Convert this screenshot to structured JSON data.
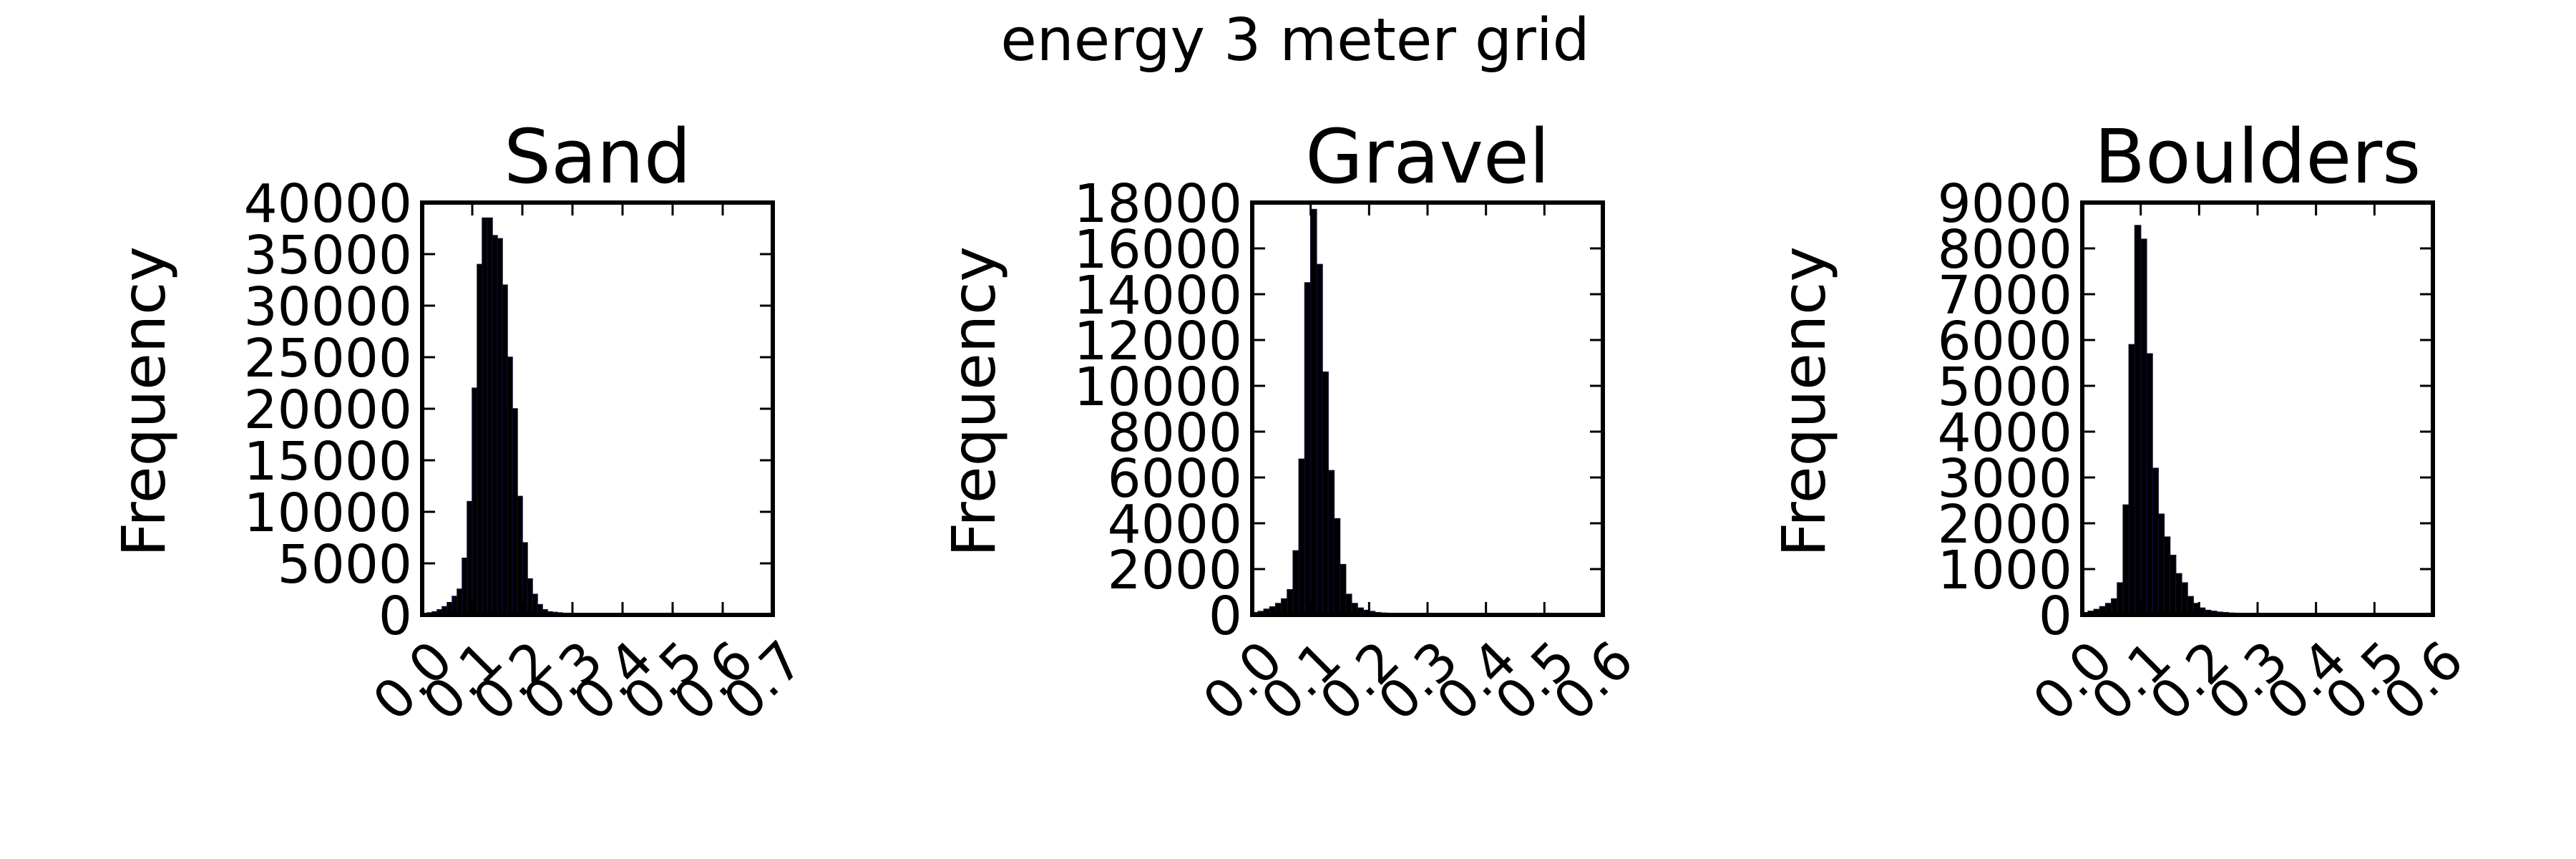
{
  "figure": {
    "suptitle": "energy 3 meter grid"
  },
  "chart_data": [
    {
      "type": "bar",
      "title": "Sand",
      "xlabel": "",
      "ylabel": "Frequency",
      "xlim": [
        0,
        0.7
      ],
      "ylim": [
        0,
        40000
      ],
      "yticks": [
        0,
        5000,
        10000,
        15000,
        20000,
        25000,
        30000,
        35000,
        40000
      ],
      "xticks": [
        "0.0",
        "0.1",
        "0.2",
        "0.3",
        "0.4",
        "0.5",
        "0.6",
        "0.7"
      ],
      "bin_width": 0.01,
      "bins_start": [
        0.0,
        0.01,
        0.02,
        0.03,
        0.04,
        0.05,
        0.06,
        0.07,
        0.08,
        0.09,
        0.1,
        0.11,
        0.12,
        0.13,
        0.14,
        0.15,
        0.16,
        0.17,
        0.18,
        0.19,
        0.2,
        0.21,
        0.22,
        0.23,
        0.24,
        0.25,
        0.26,
        0.27,
        0.28,
        0.29,
        0.3,
        0.31,
        0.32,
        0.33,
        0.34,
        0.35,
        0.36,
        0.37,
        0.38,
        0.39,
        0.4,
        0.41,
        0.42,
        0.43,
        0.44,
        0.45,
        0.46,
        0.47,
        0.48,
        0.49,
        0.5
      ],
      "values": [
        100,
        200,
        300,
        500,
        800,
        1200,
        1800,
        2500,
        5500,
        11000,
        22000,
        34000,
        38500,
        38500,
        36800,
        36500,
        32000,
        25000,
        20000,
        11500,
        7000,
        3500,
        2000,
        1000,
        500,
        300,
        250,
        200,
        150,
        120,
        100,
        90,
        80,
        70,
        60,
        100,
        50,
        40,
        30,
        30,
        20,
        20,
        20,
        15,
        10,
        10,
        10,
        10,
        10,
        10,
        10
      ]
    },
    {
      "type": "bar",
      "title": "Gravel",
      "xlabel": "",
      "ylabel": "Frequency",
      "xlim": [
        0,
        0.6
      ],
      "ylim": [
        0,
        18000
      ],
      "yticks": [
        0,
        2000,
        4000,
        6000,
        8000,
        10000,
        12000,
        14000,
        16000,
        18000
      ],
      "xticks": [
        "0.0",
        "0.1",
        "0.2",
        "0.3",
        "0.4",
        "0.5",
        "0.6"
      ],
      "bin_width": 0.01,
      "bins_start": [
        0.0,
        0.01,
        0.02,
        0.03,
        0.04,
        0.05,
        0.06,
        0.07,
        0.08,
        0.09,
        0.1,
        0.11,
        0.12,
        0.13,
        0.14,
        0.15,
        0.16,
        0.17,
        0.18,
        0.19,
        0.2,
        0.21,
        0.22,
        0.23,
        0.24,
        0.25,
        0.26,
        0.27,
        0.28,
        0.29,
        0.3,
        0.31,
        0.32,
        0.33,
        0.34,
        0.35,
        0.36,
        0.37,
        0.38,
        0.39,
        0.4,
        0.41,
        0.42,
        0.43,
        0.44,
        0.45
      ],
      "values": [
        100,
        150,
        250,
        350,
        500,
        700,
        1100,
        2800,
        6800,
        14500,
        17700,
        15300,
        10600,
        6300,
        4200,
        2200,
        900,
        500,
        300,
        200,
        150,
        100,
        80,
        60,
        50,
        40,
        30,
        25,
        20,
        15,
        10,
        10,
        10,
        10,
        5,
        5,
        5,
        5,
        5,
        5,
        5,
        5,
        5,
        5,
        5,
        5
      ]
    },
    {
      "type": "bar",
      "title": "Boulders",
      "xlabel": "",
      "ylabel": "Frequency",
      "xlim": [
        0,
        0.6
      ],
      "ylim": [
        0,
        9000
      ],
      "yticks": [
        0,
        1000,
        2000,
        3000,
        4000,
        5000,
        6000,
        7000,
        8000,
        9000
      ],
      "xticks": [
        "0.0",
        "0.1",
        "0.2",
        "0.3",
        "0.4",
        "0.5",
        "0.6"
      ],
      "bin_width": 0.01,
      "bins_start": [
        0.0,
        0.01,
        0.02,
        0.03,
        0.04,
        0.05,
        0.06,
        0.07,
        0.08,
        0.09,
        0.1,
        0.11,
        0.12,
        0.13,
        0.14,
        0.15,
        0.16,
        0.17,
        0.18,
        0.19,
        0.2,
        0.21,
        0.22,
        0.23,
        0.24,
        0.25,
        0.26,
        0.27,
        0.28,
        0.29,
        0.3,
        0.31,
        0.32,
        0.33,
        0.34,
        0.35,
        0.36,
        0.37,
        0.38,
        0.39,
        0.4,
        0.41,
        0.42,
        0.43,
        0.44,
        0.45
      ],
      "values": [
        50,
        80,
        120,
        180,
        250,
        350,
        700,
        2400,
        5900,
        8500,
        8200,
        5700,
        3200,
        2200,
        1700,
        1300,
        900,
        700,
        400,
        250,
        150,
        100,
        80,
        60,
        50,
        40,
        30,
        25,
        20,
        15,
        10,
        10,
        10,
        10,
        5,
        5,
        5,
        5,
        5,
        5,
        5,
        5,
        5,
        5,
        5,
        5
      ]
    }
  ]
}
